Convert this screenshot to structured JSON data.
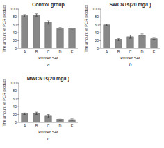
{
  "chart_data": [
    {
      "type": "bar",
      "title": "Control group",
      "annotations": [
        "a"
      ],
      "categories": [
        "A",
        "B",
        "C",
        "D",
        "E"
      ],
      "values": [
        83,
        85,
        66,
        50,
        52
      ],
      "errors": [
        3,
        3,
        4,
        3,
        5
      ],
      "xlabel": "Primer Set",
      "ylabel": "The amount of PCR product",
      "ylim": [
        0,
        100
      ],
      "yticks": [
        0,
        20,
        40,
        60,
        80,
        100
      ],
      "color": "#888888"
    },
    {
      "type": "bar",
      "title": "SWCNTs(20 mg/L)",
      "annotations": [
        "b"
      ],
      "categories": [
        "A",
        "B",
        "C",
        "D",
        "E"
      ],
      "values": [
        60,
        22,
        30,
        33,
        25
      ],
      "errors": [
        2,
        3,
        4,
        4,
        3
      ],
      "xlabel": "Primer Set",
      "ylabel": "The amount of PCR product",
      "ylim": [
        0,
        100
      ],
      "yticks": [
        0,
        20,
        40,
        60,
        80,
        100
      ],
      "color": "#888888"
    },
    {
      "type": "bar",
      "title": "MWCNTs(20 mg/L)",
      "annotations": [
        "c"
      ],
      "categories": [
        "A",
        "B",
        "C",
        "D",
        "E"
      ],
      "values": [
        22,
        23,
        16,
        8,
        7
      ],
      "errors": [
        2,
        3,
        4,
        3,
        2
      ],
      "xlabel": "Primer Set",
      "ylabel": "The amount of PCR product",
      "ylim": [
        0,
        100
      ],
      "yticks": [
        0,
        20,
        40,
        60,
        80,
        100
      ],
      "color": "#888888"
    }
  ]
}
